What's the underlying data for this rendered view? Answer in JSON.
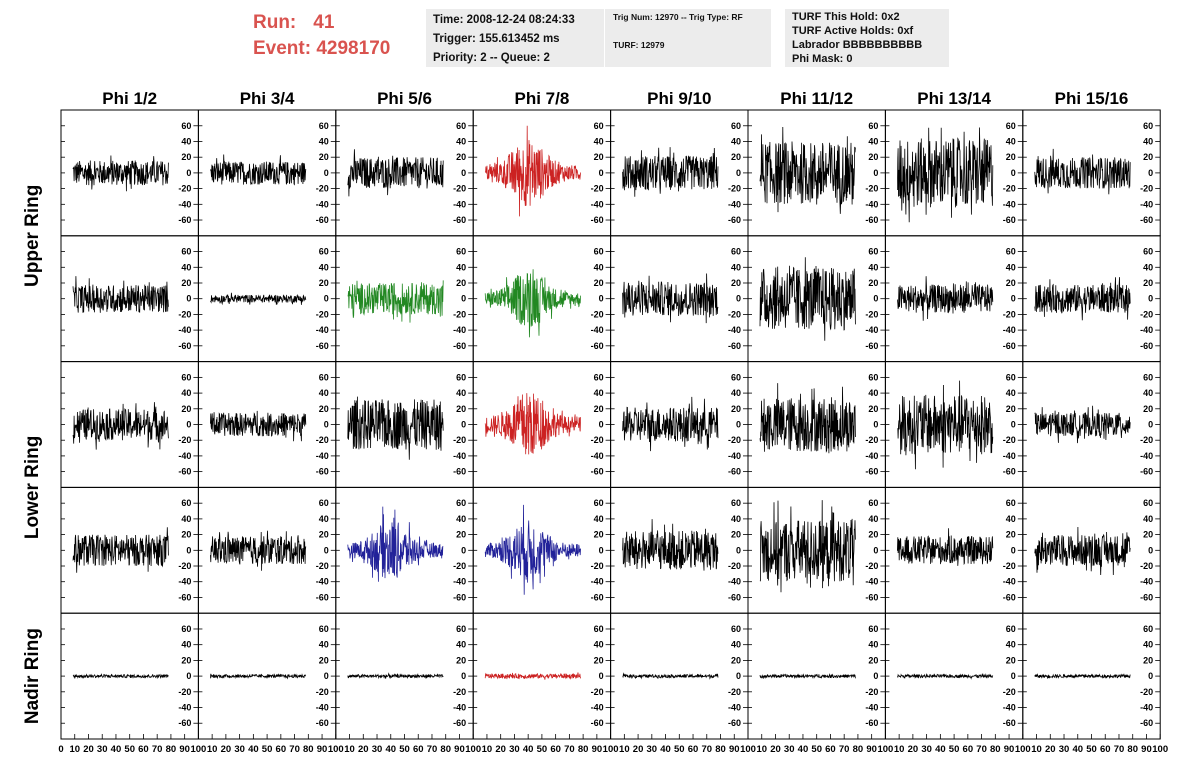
{
  "header": {
    "run_label": "Run:",
    "run_value": "41",
    "event_label": "Event:",
    "event_value": "4298170",
    "time": "Time: 2008-12-24 08:24:33",
    "trigger": "Trigger: 155.613452 ms",
    "priority": "Priority: 2 -- Queue: 2",
    "trig_num": "Trig Num: 12970 -- Trig Type: RF",
    "turf": "TURF: 12979",
    "turf_this_hold": "TURF This Hold: 0x2",
    "turf_active_holds": "TURF Active Holds: 0xf",
    "labrador": "Labrador BBBBBBBBBB",
    "phi_mask": "Phi Mask: 0"
  },
  "chart_data": {
    "type": "line",
    "columns": [
      "Phi 1/2",
      "Phi 3/4",
      "Phi 5/6",
      "Phi 7/8",
      "Phi 9/10",
      "Phi 11/12",
      "Phi 13/14",
      "Phi 15/16"
    ],
    "rows": [
      "Upper Ring",
      "Upper Ring",
      "Lower Ring",
      "Lower Ring",
      "Nadir Ring"
    ],
    "row_labels": [
      "Upper Ring",
      "Lower Ring",
      "Nadir Ring"
    ],
    "xlim": [
      0,
      100
    ],
    "xticks": [
      0,
      10,
      20,
      30,
      40,
      50,
      60,
      70,
      80,
      90,
      100
    ],
    "ylim": [
      -75,
      75
    ],
    "yticks": [
      -60,
      -40,
      -20,
      0,
      20,
      40,
      60
    ],
    "panels": [
      [
        {
          "amp": 16,
          "color": "#000000"
        },
        {
          "amp": 15,
          "color": "#000000"
        },
        {
          "amp": 20,
          "color": "#000000"
        },
        {
          "amp": 38,
          "color": "#cc2222",
          "burst": true
        },
        {
          "amp": 22,
          "color": "#000000"
        },
        {
          "amp": 40,
          "color": "#000000"
        },
        {
          "amp": 44,
          "color": "#000000"
        },
        {
          "amp": 20,
          "color": "#000000"
        }
      ],
      [
        {
          "amp": 18,
          "color": "#000000"
        },
        {
          "amp": 5,
          "color": "#000000"
        },
        {
          "amp": 20,
          "color": "#228822"
        },
        {
          "amp": 32,
          "color": "#228822",
          "burst": true
        },
        {
          "amp": 22,
          "color": "#000000"
        },
        {
          "amp": 40,
          "color": "#000000"
        },
        {
          "amp": 18,
          "color": "#000000"
        },
        {
          "amp": 18,
          "color": "#000000"
        }
      ],
      [
        {
          "amp": 20,
          "color": "#000000"
        },
        {
          "amp": 15,
          "color": "#000000"
        },
        {
          "amp": 32,
          "color": "#000000"
        },
        {
          "amp": 38,
          "color": "#cc2222",
          "burst": true
        },
        {
          "amp": 22,
          "color": "#000000"
        },
        {
          "amp": 35,
          "color": "#000000"
        },
        {
          "amp": 38,
          "color": "#000000"
        },
        {
          "amp": 15,
          "color": "#000000"
        }
      ],
      [
        {
          "amp": 20,
          "color": "#000000"
        },
        {
          "amp": 18,
          "color": "#000000"
        },
        {
          "amp": 34,
          "color": "#222299",
          "burst": true
        },
        {
          "amp": 34,
          "color": "#222299",
          "burst": true
        },
        {
          "amp": 25,
          "color": "#000000"
        },
        {
          "amp": 40,
          "color": "#000000"
        },
        {
          "amp": 18,
          "color": "#000000"
        },
        {
          "amp": 20,
          "color": "#000000"
        }
      ],
      [
        {
          "amp": 2,
          "color": "#000000"
        },
        {
          "amp": 2,
          "color": "#000000"
        },
        {
          "amp": 2,
          "color": "#000000"
        },
        {
          "amp": 3,
          "color": "#cc2222"
        },
        {
          "amp": 2,
          "color": "#000000"
        },
        {
          "amp": 2,
          "color": "#000000"
        },
        {
          "amp": 2,
          "color": "#000000"
        },
        {
          "amp": 2,
          "color": "#000000"
        }
      ]
    ]
  }
}
